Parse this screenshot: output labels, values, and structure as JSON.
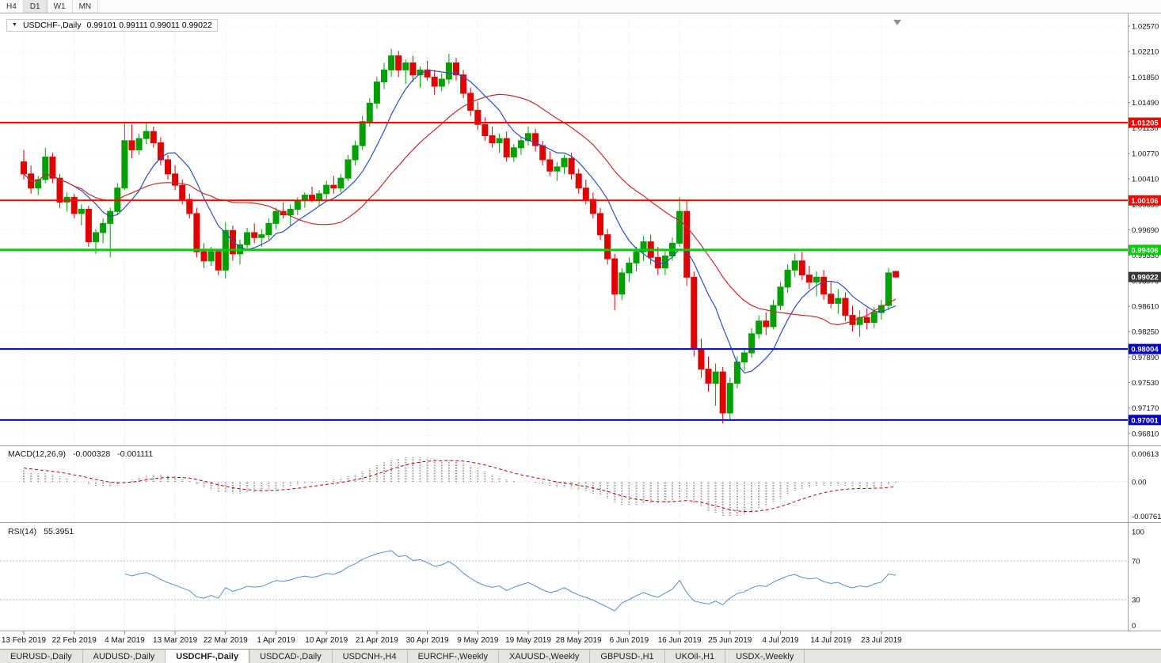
{
  "toolbar": {
    "timeframes": [
      "H4",
      "D1",
      "W1",
      "MN"
    ],
    "active": "D1"
  },
  "chart": {
    "title_symbol": "USDCHF-,Daily",
    "title_ohlc": "0.99101 0.99111 0.99011 0.99022"
  },
  "chart_data": {
    "type": "candlestick",
    "symbol": "USDCHF",
    "period": "Daily",
    "ohlc_current": {
      "open": 0.99101,
      "high": 0.99111,
      "low": 0.99011,
      "close": 0.99022
    },
    "ylim": [
      0.9664,
      1.0266
    ],
    "grid": "dotted",
    "legend": false,
    "y_axis_ticks": [
      1.0257,
      1.0221,
      1.0185,
      1.0149,
      1.0113,
      1.0077,
      1.0041,
      1.0005,
      0.9969,
      0.9933,
      0.9897,
      0.9861,
      0.9825,
      0.9789,
      0.9753,
      0.9717,
      0.9681
    ],
    "y_tick_labels": [
      "1.02570",
      "1.02210",
      "1.01850",
      "1.01490",
      "1.01130",
      "1.00770",
      "1.00410",
      "1.00050",
      "0.99690",
      "0.99330",
      "0.98970",
      "0.98610",
      "0.98250",
      "0.97890",
      "0.97530",
      "0.97170",
      "0.96810"
    ],
    "x_labels": [
      {
        "text": "13 Feb 2019",
        "index": 0
      },
      {
        "text": "22 Feb 2019",
        "index": 7
      },
      {
        "text": "4 Mar 2019",
        "index": 14
      },
      {
        "text": "13 Mar 2019",
        "index": 21
      },
      {
        "text": "22 Mar 2019",
        "index": 28
      },
      {
        "text": "1 Apr 2019",
        "index": 35
      },
      {
        "text": "10 Apr 2019",
        "index": 42
      },
      {
        "text": "21 Apr 2019",
        "index": 49
      },
      {
        "text": "30 Apr 2019",
        "index": 56
      },
      {
        "text": "9 May 2019",
        "index": 63
      },
      {
        "text": "19 May 2019",
        "index": 70
      },
      {
        "text": "28 May 2019",
        "index": 77
      },
      {
        "text": "6 Jun 2019",
        "index": 84
      },
      {
        "text": "16 Jun 2019",
        "index": 91
      },
      {
        "text": "25 Jun 2019",
        "index": 98
      },
      {
        "text": "4 Jul 2019",
        "index": 105
      },
      {
        "text": "14 Jul 2019",
        "index": 112
      },
      {
        "text": "23 Jul 2019",
        "index": 119
      }
    ],
    "hlines": [
      {
        "value": 1.01205,
        "label": "1.01205",
        "color": "#ff0000",
        "width": 2,
        "kind": "resistance"
      },
      {
        "value": 1.00106,
        "label": "1.00106",
        "color": "#ff0000",
        "width": 2,
        "kind": "resistance"
      },
      {
        "value": 0.99406,
        "label": "0.99406",
        "color": "#00cc00",
        "width": 3,
        "kind": "support"
      },
      {
        "value": 0.98004,
        "label": "0.98004",
        "color": "#0000c8",
        "width": 2,
        "kind": "support"
      },
      {
        "value": 0.97001,
        "label": "0.97001",
        "color": "#0000c8",
        "width": 2,
        "kind": "support"
      }
    ],
    "current_price": {
      "value": 0.99022,
      "label": "0.99022",
      "bg": "#383838"
    },
    "moving_averages": [
      {
        "period": 8,
        "color": "#2a50c0"
      },
      {
        "period": 21,
        "color": "#c03030"
      }
    ],
    "colors": {
      "up": "#00a000",
      "down": "#e00000"
    },
    "candles": [
      [
        1.0065,
        1.0082,
        1.004,
        1.0048
      ],
      [
        1.0048,
        1.006,
        1.002,
        1.0028
      ],
      [
        1.0028,
        1.0045,
        1.0018,
        1.004
      ],
      [
        1.004,
        1.0085,
        1.0035,
        1.0072
      ],
      [
        1.0072,
        1.0078,
        1.0035,
        1.0042
      ],
      [
        1.0042,
        1.0048,
        1.0,
        1.0008
      ],
      [
        1.0008,
        1.0022,
        0.9995,
        1.0015
      ],
      [
        1.0015,
        1.002,
        0.9985,
        0.9992
      ],
      [
        0.9992,
        1.0005,
        0.9975,
        0.9998
      ],
      [
        0.9998,
        1.0003,
        0.9945,
        0.9952
      ],
      [
        0.9952,
        0.997,
        0.9935,
        0.9965
      ],
      [
        0.9965,
        0.9985,
        0.995,
        0.9978
      ],
      [
        0.9978,
        1.0,
        0.993,
        0.9995
      ],
      [
        0.9995,
        1.0035,
        0.999,
        1.0028
      ],
      [
        1.0028,
        1.012,
        1.0025,
        1.0095
      ],
      [
        1.0095,
        1.0118,
        1.007,
        1.0082
      ],
      [
        1.0082,
        1.0105,
        1.0075,
        1.0098
      ],
      [
        1.0098,
        1.0121,
        1.009,
        1.0108
      ],
      [
        1.0108,
        1.0115,
        1.0085,
        1.0092
      ],
      [
        1.0092,
        1.01,
        1.006,
        1.0068
      ],
      [
        1.0068,
        1.0075,
        1.004,
        1.0048
      ],
      [
        1.0048,
        1.006,
        1.0025,
        1.0032
      ],
      [
        1.0032,
        1.004,
        1.0005,
        1.0012
      ],
      [
        1.0012,
        1.002,
        0.9985,
        0.9992
      ],
      [
        0.9992,
        1.0,
        0.993,
        0.9938
      ],
      [
        0.9938,
        0.995,
        0.9915,
        0.9925
      ],
      [
        0.9925,
        0.9945,
        0.9918,
        0.9938
      ],
      [
        0.9938,
        0.9942,
        0.9905,
        0.9912
      ],
      [
        0.9912,
        0.998,
        0.99,
        0.9968
      ],
      [
        0.9968,
        0.9975,
        0.9925,
        0.9935
      ],
      [
        0.9935,
        0.9955,
        0.992,
        0.9948
      ],
      [
        0.9948,
        0.9972,
        0.994,
        0.9965
      ],
      [
        0.9965,
        0.9978,
        0.995,
        0.9958
      ],
      [
        0.9958,
        0.997,
        0.9945,
        0.9962
      ],
      [
        0.9962,
        0.9985,
        0.9955,
        0.9978
      ],
      [
        0.9978,
        1.0,
        0.997,
        0.9995
      ],
      [
        0.9995,
        1.0008,
        0.9985,
        0.999
      ],
      [
        0.999,
        1.0005,
        0.9975,
        0.9998
      ],
      [
        0.9998,
        1.0015,
        0.999,
        1.001
      ],
      [
        1.001,
        1.0022,
        1.0,
        1.0018
      ],
      [
        1.0018,
        1.003,
        1.0008,
        1.0012
      ],
      [
        1.0012,
        1.0025,
        1.0002,
        1.002
      ],
      [
        1.002,
        1.0038,
        1.0012,
        1.0032
      ],
      [
        1.0032,
        1.0045,
        1.002,
        1.0028
      ],
      [
        1.0028,
        1.0048,
        1.0022,
        1.0042
      ],
      [
        1.0042,
        1.0075,
        1.0038,
        1.0068
      ],
      [
        1.0068,
        1.0095,
        1.006,
        1.0088
      ],
      [
        1.0088,
        1.013,
        1.0082,
        1.0122
      ],
      [
        1.0122,
        1.0155,
        1.0115,
        1.0148
      ],
      [
        1.0148,
        1.0185,
        1.014,
        1.0178
      ],
      [
        1.0178,
        1.0205,
        1.0168,
        1.0195
      ],
      [
        1.0195,
        1.0225,
        1.0185,
        1.0215
      ],
      [
        1.0215,
        1.0222,
        1.0185,
        1.0195
      ],
      [
        1.0195,
        1.021,
        1.0175,
        1.0205
      ],
      [
        1.0205,
        1.0215,
        1.0178,
        1.0188
      ],
      [
        1.0188,
        1.02,
        1.017,
        1.0195
      ],
      [
        1.0195,
        1.0208,
        1.018,
        1.0185
      ],
      [
        1.0185,
        1.0195,
        1.016,
        1.0172
      ],
      [
        1.0172,
        1.019,
        1.0165,
        1.0182
      ],
      [
        1.0182,
        1.0218,
        1.0175,
        1.0205
      ],
      [
        1.0205,
        1.0212,
        1.018,
        1.0188
      ],
      [
        1.0188,
        1.0195,
        1.0155,
        1.0162
      ],
      [
        1.0162,
        1.017,
        1.013,
        1.0138
      ],
      [
        1.0138,
        1.015,
        1.011,
        1.0118
      ],
      [
        1.0118,
        1.0128,
        1.0095,
        1.0102
      ],
      [
        1.0102,
        1.0115,
        1.0085,
        1.0092
      ],
      [
        1.0092,
        1.0105,
        1.0078,
        1.0098
      ],
      [
        1.0098,
        1.0108,
        1.0065,
        1.0072
      ],
      [
        1.0072,
        1.009,
        1.0065,
        1.0085
      ],
      [
        1.0085,
        1.01,
        1.0075,
        1.0095
      ],
      [
        1.0095,
        1.0115,
        1.0088,
        1.0105
      ],
      [
        1.0105,
        1.0112,
        1.008,
        1.0088
      ],
      [
        1.0088,
        1.0095,
        1.006,
        1.0068
      ],
      [
        1.0068,
        1.008,
        1.0045,
        1.0052
      ],
      [
        1.0052,
        1.0065,
        1.0038,
        1.0058
      ],
      [
        1.0058,
        1.0075,
        1.0048,
        1.007
      ],
      [
        1.007,
        1.0078,
        1.004,
        1.0048
      ],
      [
        1.0048,
        1.0055,
        1.002,
        1.0028
      ],
      [
        1.0028,
        1.004,
        1.0005,
        1.0012
      ],
      [
        1.0012,
        1.0022,
        0.9985,
        0.9992
      ],
      [
        0.9992,
        1.0,
        0.9955,
        0.9962
      ],
      [
        0.9962,
        0.997,
        0.992,
        0.9928
      ],
      [
        0.9928,
        0.9935,
        0.9855,
        0.9878
      ],
      [
        0.9878,
        0.9915,
        0.987,
        0.9908
      ],
      [
        0.9908,
        0.993,
        0.9895,
        0.9922
      ],
      [
        0.9922,
        0.9945,
        0.991,
        0.9938
      ],
      [
        0.9938,
        0.996,
        0.9925,
        0.9952
      ],
      [
        0.9952,
        0.9962,
        0.992,
        0.993
      ],
      [
        0.993,
        0.9945,
        0.9905,
        0.9915
      ],
      [
        0.9915,
        0.994,
        0.9905,
        0.9932
      ],
      [
        0.9932,
        0.9958,
        0.9925,
        0.995
      ],
      [
        0.995,
        1.0015,
        0.9945,
        0.9995
      ],
      [
        0.9995,
        1.001,
        0.989,
        0.9902
      ],
      [
        0.9902,
        0.991,
        0.979,
        0.98
      ],
      [
        0.98,
        0.9815,
        0.976,
        0.9772
      ],
      [
        0.9772,
        0.979,
        0.974,
        0.9752
      ],
      [
        0.9752,
        0.978,
        0.972,
        0.9768
      ],
      [
        0.9768,
        0.9775,
        0.9695,
        0.971
      ],
      [
        0.971,
        0.976,
        0.97,
        0.9752
      ],
      [
        0.9752,
        0.979,
        0.9745,
        0.9782
      ],
      [
        0.9782,
        0.9802,
        0.977,
        0.9795
      ],
      [
        0.9795,
        0.983,
        0.9788,
        0.9822
      ],
      [
        0.9822,
        0.9848,
        0.9815,
        0.984
      ],
      [
        0.984,
        0.9852,
        0.982,
        0.9832
      ],
      [
        0.9832,
        0.987,
        0.9828,
        0.9862
      ],
      [
        0.9862,
        0.9895,
        0.9855,
        0.9888
      ],
      [
        0.9888,
        0.992,
        0.988,
        0.9912
      ],
      [
        0.9912,
        0.9935,
        0.9902,
        0.9925
      ],
      [
        0.9925,
        0.9938,
        0.9898,
        0.9905
      ],
      [
        0.9905,
        0.9918,
        0.9885,
        0.9895
      ],
      [
        0.9895,
        0.991,
        0.9875,
        0.9902
      ],
      [
        0.9902,
        0.9912,
        0.987,
        0.9878
      ],
      [
        0.9878,
        0.9895,
        0.9858,
        0.9865
      ],
      [
        0.9865,
        0.9885,
        0.985,
        0.9872
      ],
      [
        0.9872,
        0.988,
        0.984,
        0.9848
      ],
      [
        0.9848,
        0.9862,
        0.9825,
        0.9835
      ],
      [
        0.9835,
        0.9855,
        0.9818,
        0.9845
      ],
      [
        0.9845,
        0.9858,
        0.9828,
        0.9838
      ],
      [
        0.9838,
        0.986,
        0.983,
        0.9852
      ],
      [
        0.9852,
        0.987,
        0.9842,
        0.9862
      ],
      [
        0.9862,
        0.9915,
        0.9855,
        0.9908
      ],
      [
        0.99101,
        0.99111,
        0.99011,
        0.99022
      ]
    ]
  },
  "macd": {
    "name": "MACD(12,26,9)",
    "value_main": "-0.000328",
    "value_signal": "-0.001111",
    "axis": [
      {
        "value": 0.00613,
        "label": "0.00613"
      },
      {
        "value": 0,
        "label": "0.00"
      },
      {
        "value": -0.007612,
        "label": "-0.0076120"
      }
    ],
    "colors": {
      "histogram": "#a0a0a0",
      "signal": "#c00000"
    }
  },
  "rsi": {
    "name": "RSI(14)",
    "value": "55.3951",
    "period": 14,
    "levels": [
      70,
      30
    ],
    "axis": [
      {
        "value": 100,
        "label": "100"
      },
      {
        "value": 70,
        "label": "70"
      },
      {
        "value": 30,
        "label": "30"
      },
      {
        "value": 0,
        "label": "0"
      }
    ],
    "color": "#5b8dc8"
  },
  "tabs": [
    {
      "label": "EURUSD-,Daily",
      "active": false
    },
    {
      "label": "AUDUSD-,Daily",
      "active": false
    },
    {
      "label": "USDCHF-,Daily",
      "active": true
    },
    {
      "label": "USDCAD-,Daily",
      "active": false
    },
    {
      "label": "USDCNH-,H4",
      "active": false
    },
    {
      "label": "EURCHF-,Weekly",
      "active": false
    },
    {
      "label": "XAUUSD-,Weekly",
      "active": false
    },
    {
      "label": "GBPUSD-,H1",
      "active": false
    },
    {
      "label": "UKOil-,H1",
      "active": false
    },
    {
      "label": "USDX-,Weekly",
      "active": false
    }
  ]
}
